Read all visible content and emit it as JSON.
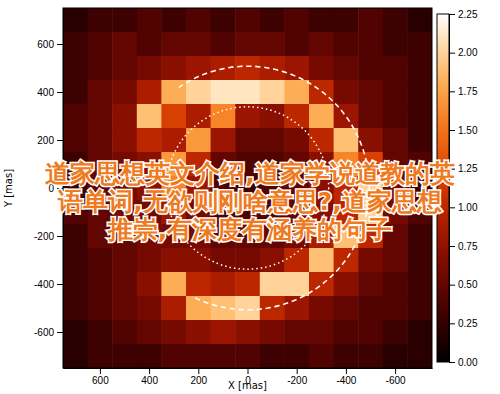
{
  "chart_data": {
    "type": "heatmap",
    "x_label": "X [mas]",
    "y_label": "Y [mas]",
    "xlim": [
      750,
      -750
    ],
    "ylim": [
      -750,
      750
    ],
    "xticks": [
      600,
      400,
      200,
      0,
      -200,
      -400,
      -600
    ],
    "yticks": [
      -600,
      -400,
      -200,
      0,
      200,
      400,
      600
    ],
    "x": [
      700,
      600,
      500,
      400,
      300,
      200,
      100,
      0,
      -100,
      -200,
      -300,
      -400,
      -500,
      -600,
      -700
    ],
    "y": [
      700,
      600,
      500,
      400,
      300,
      200,
      100,
      0,
      -100,
      -200,
      -300,
      -400,
      -500,
      -600,
      -700
    ],
    "z": [
      [
        0.2,
        0.3,
        0.3,
        0.4,
        0.3,
        0.4,
        0.3,
        0.4,
        0.3,
        0.4,
        0.3,
        0.3,
        0.4,
        0.3,
        0.2
      ],
      [
        0.3,
        0.4,
        0.5,
        0.4,
        0.5,
        0.5,
        0.4,
        0.5,
        0.5,
        0.4,
        0.5,
        0.4,
        0.4,
        0.3,
        0.3
      ],
      [
        0.3,
        0.4,
        0.5,
        0.6,
        0.7,
        0.8,
        0.9,
        1.0,
        0.9,
        0.8,
        0.6,
        0.5,
        0.4,
        0.4,
        0.3
      ],
      [
        0.3,
        0.5,
        0.6,
        0.9,
        1.8,
        2.0,
        2.1,
        2.1,
        2.0,
        1.8,
        1.0,
        0.6,
        0.5,
        0.4,
        0.3
      ],
      [
        0.4,
        0.5,
        0.7,
        1.9,
        1.2,
        0.9,
        1.6,
        0.8,
        0.7,
        1.0,
        1.8,
        0.8,
        0.5,
        0.4,
        0.3
      ],
      [
        0.4,
        0.5,
        0.7,
        1.0,
        0.9,
        1.7,
        0.8,
        0.5,
        0.5,
        0.6,
        1.0,
        1.9,
        0.7,
        0.5,
        0.3
      ],
      [
        0.3,
        0.5,
        0.6,
        0.7,
        1.7,
        1.0,
        0.5,
        0.4,
        0.4,
        0.5,
        0.7,
        1.6,
        1.2,
        0.5,
        0.4
      ],
      [
        0.3,
        0.5,
        0.6,
        0.7,
        1.6,
        0.8,
        0.4,
        0.3,
        0.4,
        0.5,
        0.7,
        1.0,
        2.0,
        0.6,
        0.3
      ],
      [
        0.4,
        0.5,
        0.6,
        0.6,
        0.8,
        0.6,
        0.4,
        0.4,
        0.4,
        0.5,
        0.7,
        1.0,
        2.0,
        0.6,
        0.4
      ],
      [
        0.3,
        0.5,
        0.5,
        0.6,
        0.6,
        0.6,
        0.5,
        0.5,
        0.5,
        0.6,
        0.9,
        1.9,
        1.0,
        0.5,
        0.3
      ],
      [
        0.3,
        0.4,
        0.5,
        0.6,
        0.7,
        0.7,
        0.6,
        0.6,
        0.7,
        1.0,
        1.9,
        1.0,
        0.6,
        0.5,
        0.3
      ],
      [
        0.3,
        0.4,
        0.5,
        0.7,
        1.8,
        1.0,
        0.9,
        1.0,
        2.0,
        2.0,
        1.0,
        0.7,
        0.5,
        0.4,
        0.3
      ],
      [
        0.3,
        0.4,
        0.5,
        0.6,
        0.9,
        1.8,
        1.9,
        2.0,
        1.0,
        0.8,
        0.6,
        0.5,
        0.4,
        0.4,
        0.3
      ],
      [
        0.2,
        0.3,
        0.4,
        0.5,
        0.6,
        0.7,
        0.8,
        0.7,
        0.6,
        0.5,
        0.5,
        0.4,
        0.4,
        0.3,
        0.2
      ],
      [
        0.2,
        0.3,
        0.3,
        0.3,
        0.4,
        0.4,
        0.4,
        0.4,
        0.3,
        0.3,
        0.4,
        0.3,
        0.3,
        0.2,
        0.2
      ]
    ],
    "colorbar_range": [
      0,
      2.25
    ],
    "colorbar_ticks": [
      {
        "value": 0,
        "label": "0.00"
      },
      {
        "value": 0.25,
        "label": "0.25"
      },
      {
        "value": 0.5,
        "label": "0.50"
      },
      {
        "value": 0.75,
        "label": "0.75"
      },
      {
        "value": 1,
        "label": "1.00"
      },
      {
        "value": 1.25,
        "label": "1.25"
      },
      {
        "value": 1.5,
        "label": "1.50"
      },
      {
        "value": 1.75,
        "label": "1.75"
      },
      {
        "value": 2,
        "label": "2.00"
      },
      {
        "value": 2.25,
        "label": "2.25"
      }
    ],
    "annotations": [
      "道家思想英文介绍,道家学说道教的英",
      "语单词,无欲则刚啥意思?,道家思想",
      "推崇,有深度有涵养的句子"
    ]
  }
}
